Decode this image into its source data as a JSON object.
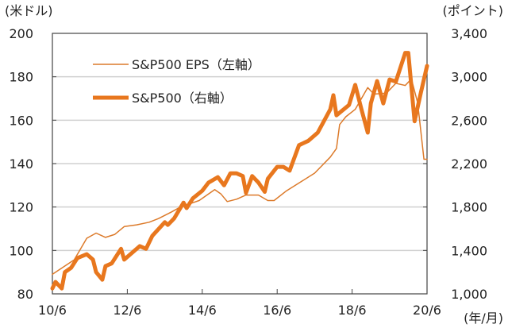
{
  "chart_data": {
    "type": "line",
    "left_axis_unit": "(米ドル)",
    "right_axis_unit": "(ポイント)",
    "x_axis_unit": "(年/月)",
    "x_ticks": [
      "10/6",
      "12/6",
      "14/6",
      "16/6",
      "18/6",
      "20/6"
    ],
    "left_ylim": [
      80,
      200
    ],
    "left_ticks": [
      "80",
      "100",
      "120",
      "140",
      "160",
      "180",
      "200"
    ],
    "right_ylim": [
      1000,
      3400
    ],
    "right_ticks": [
      "1,000",
      "1,400",
      "1,800",
      "2,200",
      "2,600",
      "3,000",
      "3,400"
    ],
    "grid": true,
    "legend_position": "top-left",
    "series": [
      {
        "name": "S&P500 EPS（左軸）",
        "axis": "left",
        "color": "#DC7A2A",
        "x": [
          "2010/06",
          "2011/01",
          "2011/05",
          "2011/08",
          "2011/11",
          "2012/02",
          "2012/05",
          "2012/09",
          "2013/01",
          "2013/04",
          "2013/08",
          "2013/11",
          "2014/05",
          "2014/10",
          "2014/12",
          "2015/02",
          "2015/05",
          "2015/08",
          "2015/12",
          "2016/03",
          "2016/05",
          "2016/09",
          "2017/02",
          "2017/06",
          "2017/11",
          "2018/01",
          "2018/02",
          "2018/04",
          "2018/07",
          "2018/11",
          "2019/01",
          "2019/05",
          "2019/08",
          "2019/11",
          "2020/01",
          "2020/03",
          "2020/05",
          "2020/06"
        ],
        "y": [
          89,
          95.7,
          105.6,
          108,
          106,
          107.4,
          111,
          111.8,
          113,
          114.7,
          117.6,
          120,
          123,
          128,
          126,
          122.5,
          123.6,
          125.5,
          125.5,
          123,
          123,
          127.5,
          132,
          135.6,
          143,
          147,
          158,
          161.6,
          165,
          175,
          172,
          172.5,
          177,
          176,
          179,
          168,
          142,
          142
        ]
      },
      {
        "name": "S&P500（右軸）",
        "axis": "right",
        "color": "#E8771E",
        "x": [
          "2010/06",
          "2010/07",
          "2010/09",
          "2010/10",
          "2010/12",
          "2011/02",
          "2011/05",
          "2011/07",
          "2011/08",
          "2011/10",
          "2011/11",
          "2012/01",
          "2012/04",
          "2012/05",
          "2012/10",
          "2012/12",
          "2013/02",
          "2013/06",
          "2013/07",
          "2013/09",
          "2013/12",
          "2014/01",
          "2014/03",
          "2014/06",
          "2014/08",
          "2014/11",
          "2015/01",
          "2015/03",
          "2015/05",
          "2015/07",
          "2015/08",
          "2015/10",
          "2015/12",
          "2016/02",
          "2016/03",
          "2016/06",
          "2016/08",
          "2016/10",
          "2017/01",
          "2017/04",
          "2017/07",
          "2017/11",
          "2017/12",
          "2018/01",
          "2018/05",
          "2018/07",
          "2018/09",
          "2018/11",
          "2018/12",
          "2019/02",
          "2019/04",
          "2019/06",
          "2019/08",
          "2019/11",
          "2019/12",
          "2020/02",
          "2020/04",
          "2020/06"
        ],
        "y": [
          1050,
          1110,
          1050,
          1200,
          1240,
          1330,
          1365,
          1315,
          1200,
          1130,
          1255,
          1280,
          1415,
          1315,
          1440,
          1415,
          1535,
          1660,
          1635,
          1695,
          1840,
          1790,
          1880,
          1950,
          2025,
          2075,
          2000,
          2110,
          2110,
          2085,
          1930,
          2085,
          2025,
          1940,
          2060,
          2170,
          2170,
          2135,
          2370,
          2410,
          2485,
          2700,
          2830,
          2645,
          2740,
          2925,
          2700,
          2485,
          2755,
          2960,
          2755,
          2975,
          2955,
          3220,
          3220,
          2590,
          2850,
          3100
        ]
      }
    ]
  }
}
